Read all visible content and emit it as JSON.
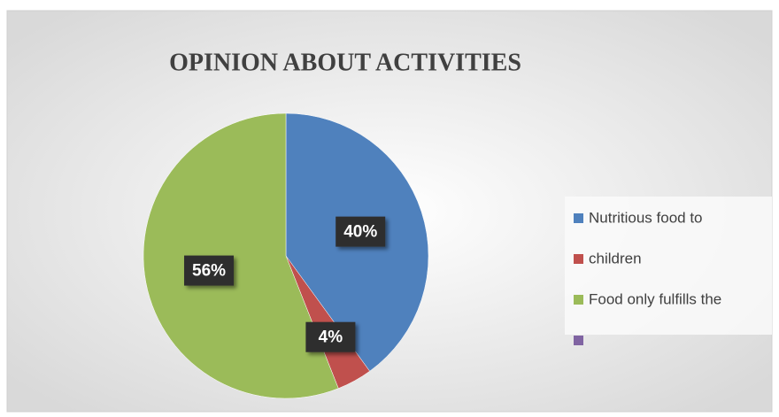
{
  "chart_data": {
    "type": "pie",
    "title": "OPINION ABOUT ACTIVITIES",
    "categories": [
      "Nutritious food to",
      "children",
      "Food only fulfills the",
      null
    ],
    "values": [
      40,
      4,
      56,
      0
    ],
    "value_labels": [
      "40%",
      "4%",
      "56%",
      null
    ],
    "colors": [
      "#4f81bd",
      "#c0504d",
      "#9bbb59",
      "#8064a2"
    ],
    "legend": "right"
  }
}
